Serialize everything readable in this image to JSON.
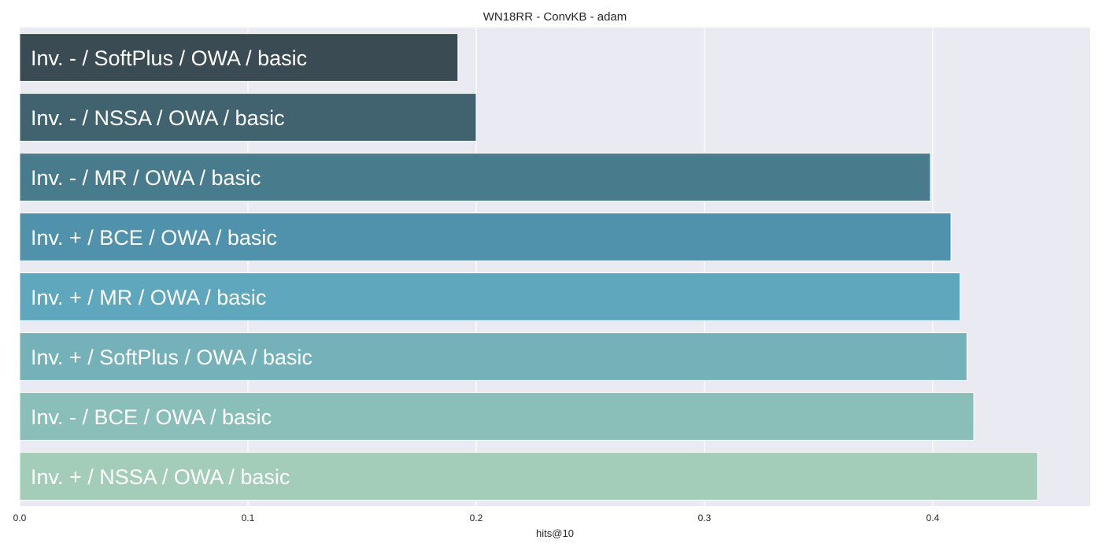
{
  "chart_data": {
    "type": "bar",
    "orientation": "horizontal",
    "title": "WN18RR - ConvKB - adam",
    "xlabel": "hits@10",
    "ylabel": "",
    "xlim": [
      0.0,
      0.469
    ],
    "xticks": [
      0.0,
      0.1,
      0.2,
      0.3,
      0.4
    ],
    "xtick_labels": [
      "0.0",
      "0.1",
      "0.2",
      "0.3",
      "0.4"
    ],
    "grid": true,
    "categories": [
      "Inv. - / SoftPlus / OWA / basic",
      "Inv. - / NSSA / OWA / basic",
      "Inv. - / MR / OWA / basic",
      "Inv. + / BCE / OWA / basic",
      "Inv. + / MR / OWA / basic",
      "Inv. + / SoftPlus / OWA / basic",
      "Inv. - / BCE / OWA / basic",
      "Inv. + / NSSA / OWA / basic"
    ],
    "values": [
      0.192,
      0.2,
      0.399,
      0.408,
      0.412,
      0.415,
      0.418,
      0.446
    ],
    "colors": [
      "#3a4b53",
      "#41636f",
      "#487b8c",
      "#5092ac",
      "#5ea7bd",
      "#75b1b9",
      "#8abfb9",
      "#a3cdb9"
    ]
  },
  "colors": {
    "plot_background": "#eaeaf2",
    "grid": "#ffffff",
    "text": "#262626",
    "bar_label": "#ffffff"
  }
}
